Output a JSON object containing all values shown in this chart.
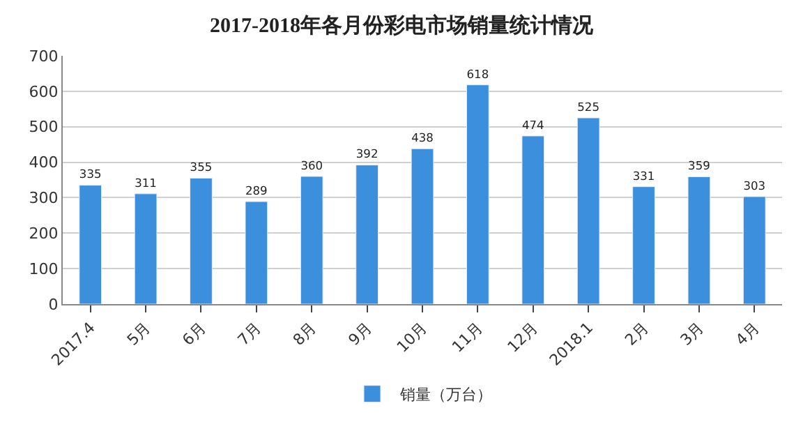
{
  "chart_data": {
    "type": "bar",
    "title": "2017-2018年各月份彩电市场销量统计情况",
    "categories": [
      "2017.4",
      "5月",
      "6月",
      "7月",
      "8月",
      "9月",
      "10月",
      "11月",
      "12月",
      "2018.1",
      "2月",
      "3月",
      "4月"
    ],
    "series": [
      {
        "name": "销量（万台）",
        "color": "#3b8fdc",
        "values": [
          335,
          311,
          355,
          289,
          360,
          392,
          438,
          618,
          474,
          525,
          331,
          359,
          303
        ]
      }
    ],
    "ylim": [
      0,
      700
    ],
    "yticks": [
      0,
      100,
      200,
      300,
      400,
      500,
      600,
      700
    ],
    "grid": "y",
    "legend": "bottom",
    "data_labels": true
  }
}
